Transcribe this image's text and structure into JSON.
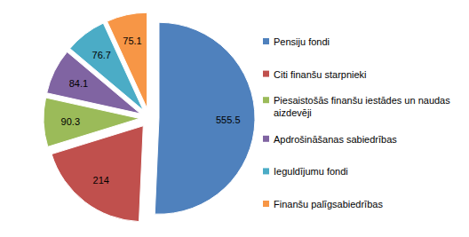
{
  "chart_data": {
    "type": "pie",
    "categories": [
      "Pensiju fondi",
      "Citi finanšu starpnieki",
      "Piesaistošās finanšu iestādes un naudas aizdevēji",
      "Apdrošināšanas sabiedrības",
      "Ieguldījumu fondi",
      "Finanšu palīgsabiedrības"
    ],
    "values": [
      555.5,
      214,
      90.3,
      84.1,
      76.7,
      75.1
    ],
    "colors": [
      "#4f81bd",
      "#c0504d",
      "#9bbb59",
      "#8064a2",
      "#4bacc6",
      "#f79646"
    ],
    "data_labels": true,
    "legend": "right"
  }
}
